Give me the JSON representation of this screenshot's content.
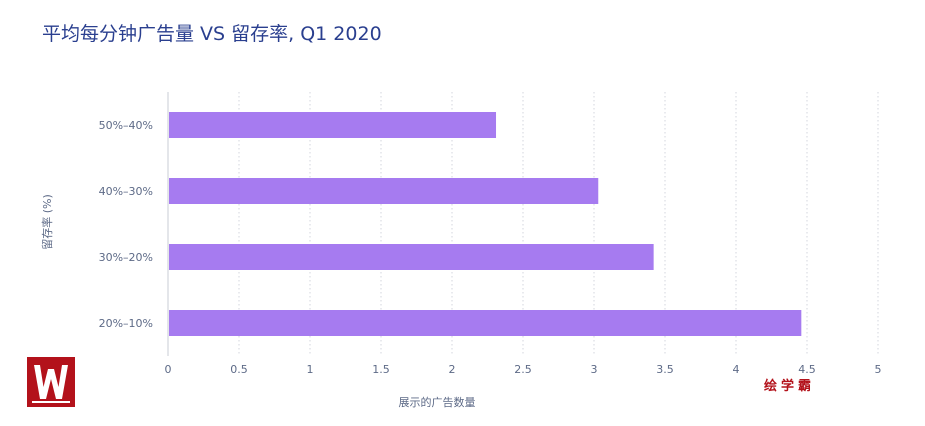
{
  "chart_data": {
    "type": "bar",
    "orientation": "horizontal",
    "title": "平均每分钟广告量 VS 留存率, Q1 2020",
    "xlabel": "展示的广告数量",
    "ylabel": "留存率 (%)",
    "categories": [
      "50%–40%",
      "40%–30%",
      "30%–20%",
      "20%–10%"
    ],
    "values": [
      2.31,
      3.03,
      3.42,
      4.46
    ],
    "xlim": [
      0,
      5
    ],
    "xticks": [
      0,
      0.5,
      1,
      1.5,
      2,
      2.5,
      3,
      3.5,
      4,
      4.5,
      5
    ],
    "xtick_labels": [
      "0",
      "0.5",
      "1",
      "1.5",
      "2",
      "2.5",
      "3",
      "3.5",
      "4",
      "4.5",
      "5"
    ],
    "grid": true,
    "bar_color": "#a67bf0"
  },
  "watermark": {
    "text": "绘学霸",
    "color": "#b3121b"
  },
  "logo": {
    "icon": "brand-w-logo-icon",
    "color": "#b3121b"
  }
}
